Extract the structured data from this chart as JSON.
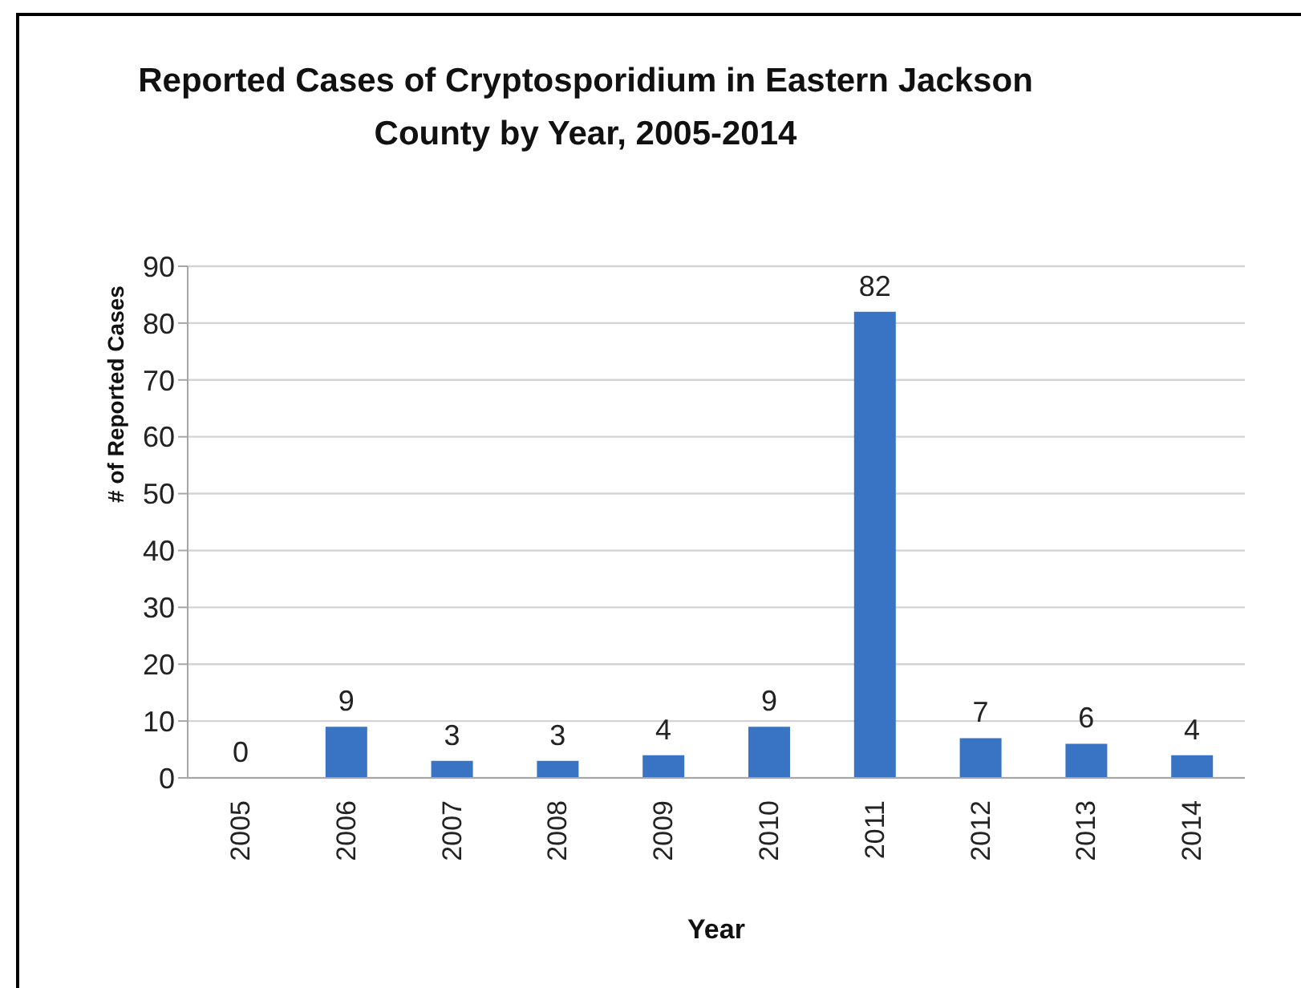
{
  "chart_data": {
    "type": "bar",
    "title": "Reported Cases of Cryptosporidium in Eastern Jackson County by Year, 2005-2014",
    "xlabel": "Year",
    "ylabel": "# of Reported Cases",
    "categories": [
      "2005",
      "2006",
      "2007",
      "2008",
      "2009",
      "2010",
      "2011",
      "2012",
      "2013",
      "2014"
    ],
    "values": [
      0,
      9,
      3,
      3,
      4,
      9,
      82,
      7,
      6,
      4
    ],
    "color": "#3873c4",
    "ylim": [
      0,
      90
    ],
    "yticks": [
      0,
      10,
      20,
      30,
      40,
      50,
      60,
      70,
      80,
      90
    ],
    "grid": "y",
    "data_labels": true
  }
}
